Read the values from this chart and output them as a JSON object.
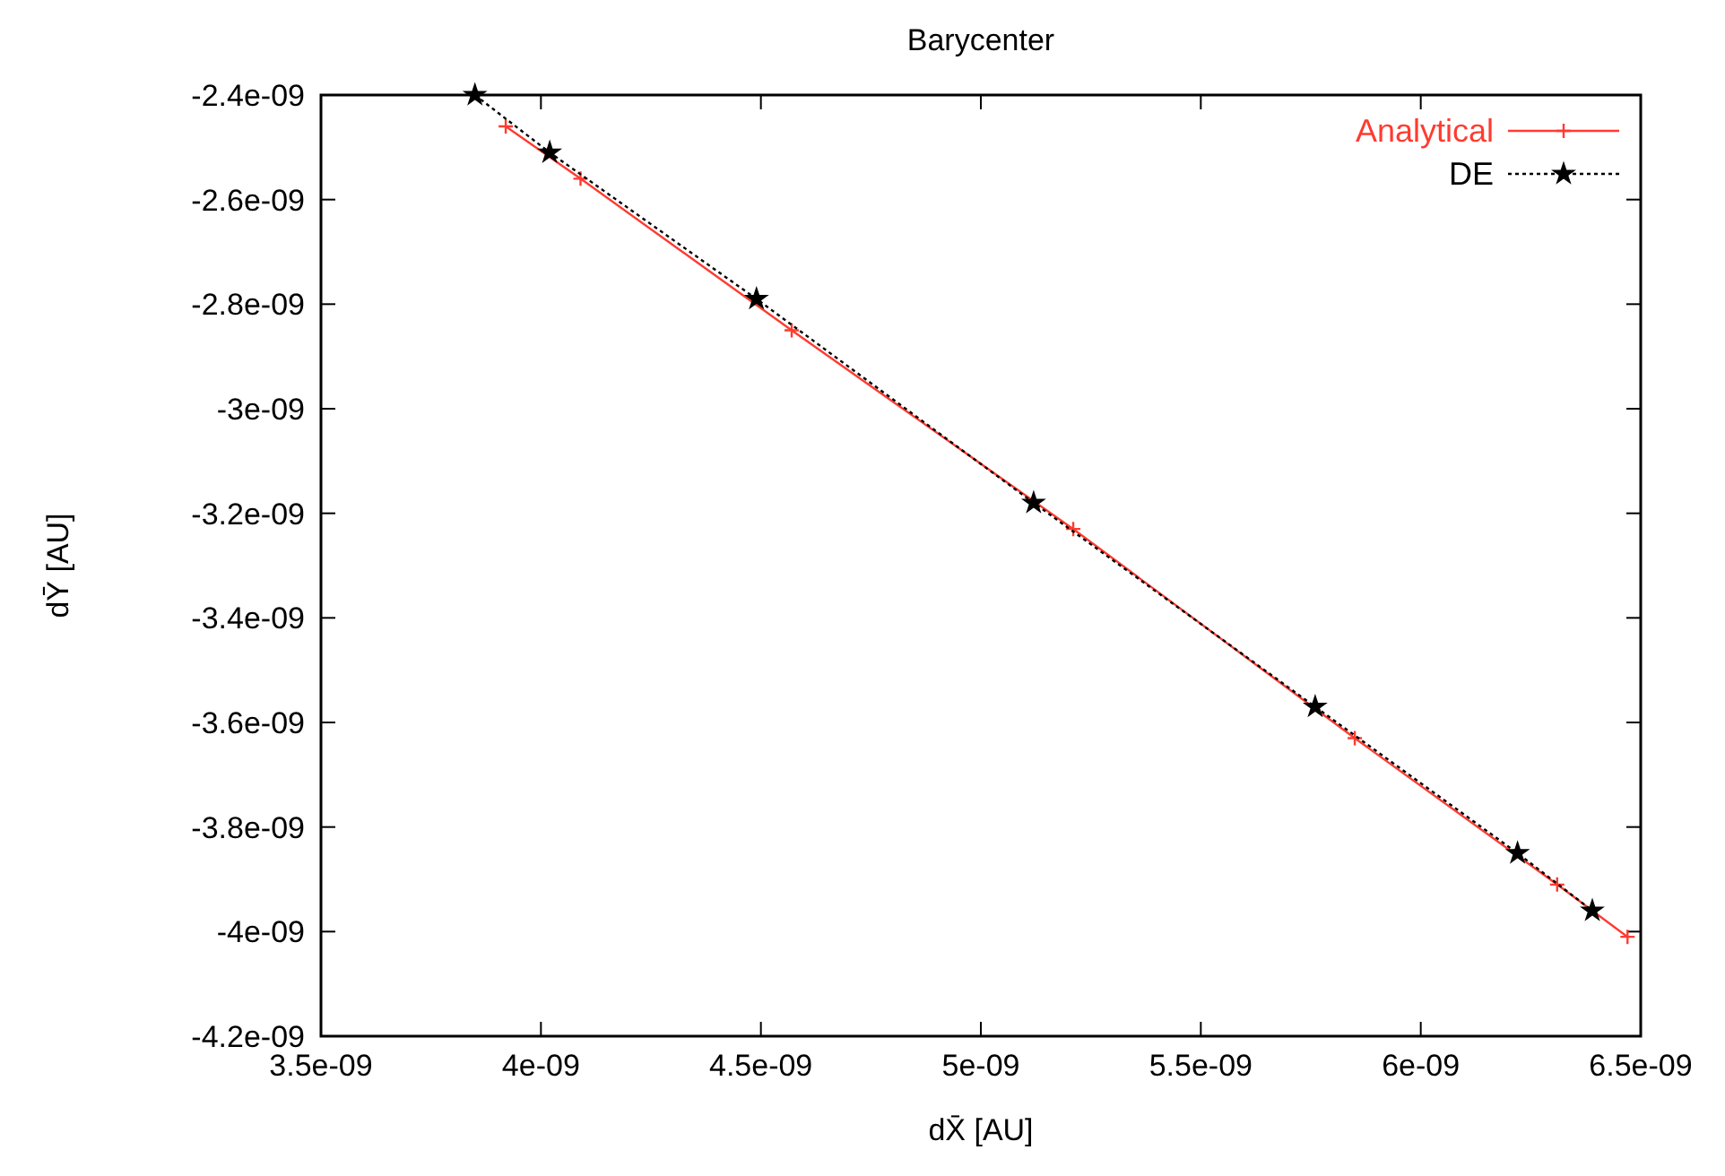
{
  "chart_data": {
    "type": "line",
    "title": "Barycenter",
    "xlabel": "dX̄ [AU]",
    "ylabel": "dȲ [AU]",
    "xlim": [
      3.5e-09,
      6.5e-09
    ],
    "xticks": [
      {
        "value": 3.5e-09,
        "label": "3.5e-09"
      },
      {
        "value": 4e-09,
        "label": "4e-09"
      },
      {
        "value": 4.5e-09,
        "label": "4.5e-09"
      },
      {
        "value": 5e-09,
        "label": "5e-09"
      },
      {
        "value": 5.5e-09,
        "label": "5.5e-09"
      },
      {
        "value": 6e-09,
        "label": "6e-09"
      },
      {
        "value": 6.5e-09,
        "label": "6.5e-09"
      }
    ],
    "ylim": [
      -4.2e-09,
      -2.4e-09
    ],
    "yticks": [
      {
        "value": -4.2e-09,
        "label": "-4.2e-09"
      },
      {
        "value": -4e-09,
        "label": "-4e-09"
      },
      {
        "value": -3.8e-09,
        "label": "-3.8e-09"
      },
      {
        "value": -3.6e-09,
        "label": "-3.6e-09"
      },
      {
        "value": -3.4e-09,
        "label": "-3.4e-09"
      },
      {
        "value": -3.2e-09,
        "label": "-3.2e-09"
      },
      {
        "value": -3e-09,
        "label": "-3e-09"
      },
      {
        "value": -2.8e-09,
        "label": "-2.8e-09"
      },
      {
        "value": -2.6e-09,
        "label": "-2.6e-09"
      },
      {
        "value": -2.4e-09,
        "label": "-2.4e-09"
      }
    ],
    "grid": false,
    "legend": "top right",
    "series": [
      {
        "name": "Analytical",
        "color": "#ff3b30",
        "marker": "cross",
        "line_style": "solid",
        "x": [
          3.92e-09,
          4.09e-09,
          4.57e-09,
          5.21e-09,
          5.85e-09,
          6.31e-09,
          6.47e-09
        ],
        "values": [
          -2.46e-09,
          -2.56e-09,
          -2.85e-09,
          -3.23e-09,
          -3.63e-09,
          -3.91e-09,
          -4.01e-09
        ]
      },
      {
        "name": "DE",
        "color": "#000000",
        "marker": "star",
        "line_style": "dotted",
        "x": [
          3.85e-09,
          4.02e-09,
          4.49e-09,
          5.12e-09,
          5.76e-09,
          6.22e-09,
          6.39e-09
        ],
        "values": [
          -2.4e-09,
          -2.51e-09,
          -2.79e-09,
          -3.18e-09,
          -3.57e-09,
          -3.85e-09,
          -3.96e-09
        ]
      }
    ]
  }
}
